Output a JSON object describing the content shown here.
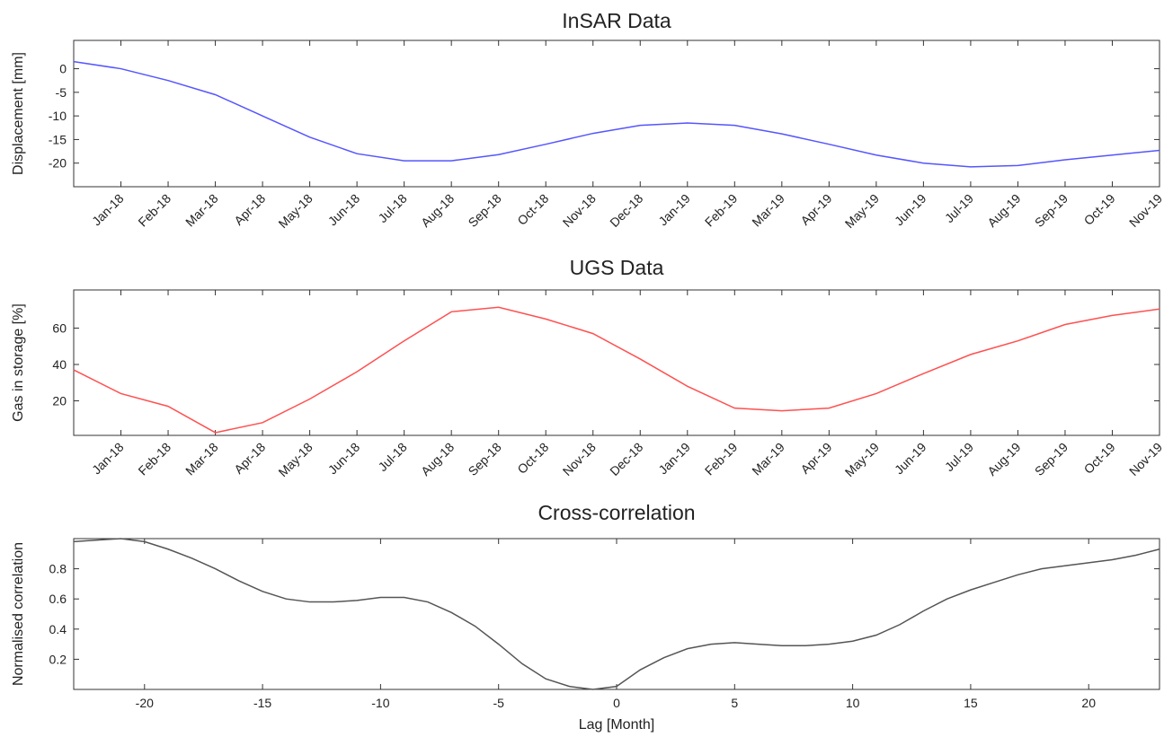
{
  "chart_data": [
    {
      "type": "line",
      "title": "InSAR Data",
      "ylabel": "Displacement [mm]",
      "color": "#5555ff",
      "categories": [
        null,
        "Jan-18",
        "Feb-18",
        "Mar-18",
        "Apr-18",
        "May-18",
        "Jun-18",
        "Jul-18",
        "Aug-18",
        "Sep-18",
        "Oct-18",
        "Nov-18",
        "Dec-18",
        "Jan-19",
        "Feb-19",
        "Mar-19",
        "Apr-19",
        "May-19",
        "Jun-19",
        "Jul-19",
        "Aug-19",
        "Sep-19",
        "Oct-19",
        "Nov-19"
      ],
      "values": [
        1.5,
        0,
        -2.5,
        -5.5,
        -10,
        -14.5,
        -18,
        -19.5,
        -19.5,
        -18.2,
        -16,
        -13.7,
        -12,
        -11.5,
        -12,
        -13.8,
        -16,
        -18.3,
        -20,
        -20.8,
        -20.5,
        -19.3,
        -18.3,
        -17.3
      ],
      "ylim": [
        -25,
        6
      ],
      "yticks": [
        -20,
        -15,
        -10,
        -5,
        0
      ]
    },
    {
      "type": "line",
      "title": "UGS Data",
      "ylabel": "Gas in storage [%]",
      "color": "#ff5050",
      "categories": [
        null,
        "Jan-18",
        "Feb-18",
        "Mar-18",
        "Apr-18",
        "May-18",
        "Jun-18",
        "Jul-18",
        "Aug-18",
        "Sep-18",
        "Oct-18",
        "Nov-18",
        "Dec-18",
        "Jan-19",
        "Feb-19",
        "Mar-19",
        "Apr-19",
        "May-19",
        "Jun-19",
        "Jul-19",
        "Aug-19",
        "Sep-19",
        "Oct-19",
        "Nov-19"
      ],
      "values": [
        37,
        24,
        17,
        2.5,
        8,
        21,
        36,
        53,
        69,
        71.5,
        65,
        57,
        43,
        28,
        16,
        14.5,
        16,
        24,
        35,
        45.5,
        53,
        62,
        67,
        70.5
      ],
      "ylim": [
        1,
        81
      ],
      "yticks": [
        20,
        40,
        60
      ]
    },
    {
      "type": "line",
      "title": "Cross-correlation",
      "ylabel": "Normalised correlation",
      "xlabel": "Lag [Month]",
      "color": "#555555",
      "x": [
        -23,
        -22,
        -21,
        -20,
        -19,
        -18,
        -17,
        -16,
        -15,
        -14,
        -13,
        -12,
        -11,
        -10,
        -9,
        -8,
        -7,
        -6,
        -5,
        -4,
        -3,
        -2,
        -1,
        0,
        1,
        2,
        3,
        4,
        5,
        6,
        7,
        8,
        9,
        10,
        11,
        12,
        13,
        14,
        15,
        16,
        17,
        18,
        19,
        20,
        21,
        22,
        23
      ],
      "values": [
        0.98,
        0.99,
        1.0,
        0.98,
        0.93,
        0.87,
        0.8,
        0.72,
        0.65,
        0.6,
        0.58,
        0.58,
        0.59,
        0.61,
        0.61,
        0.58,
        0.51,
        0.42,
        0.3,
        0.17,
        0.07,
        0.02,
        0.0,
        0.02,
        0.13,
        0.21,
        0.27,
        0.3,
        0.31,
        0.3,
        0.29,
        0.29,
        0.3,
        0.32,
        0.36,
        0.43,
        0.52,
        0.6,
        0.66,
        0.71,
        0.76,
        0.8,
        0.82,
        0.84,
        0.86,
        0.89,
        0.93
      ],
      "xlim": [
        -23,
        23
      ],
      "xticks": [
        -20,
        -15,
        -10,
        -5,
        0,
        5,
        10,
        15,
        20
      ],
      "ylim": [
        0,
        1
      ],
      "yticks": [
        0.2,
        0.4,
        0.6,
        0.8
      ]
    }
  ]
}
